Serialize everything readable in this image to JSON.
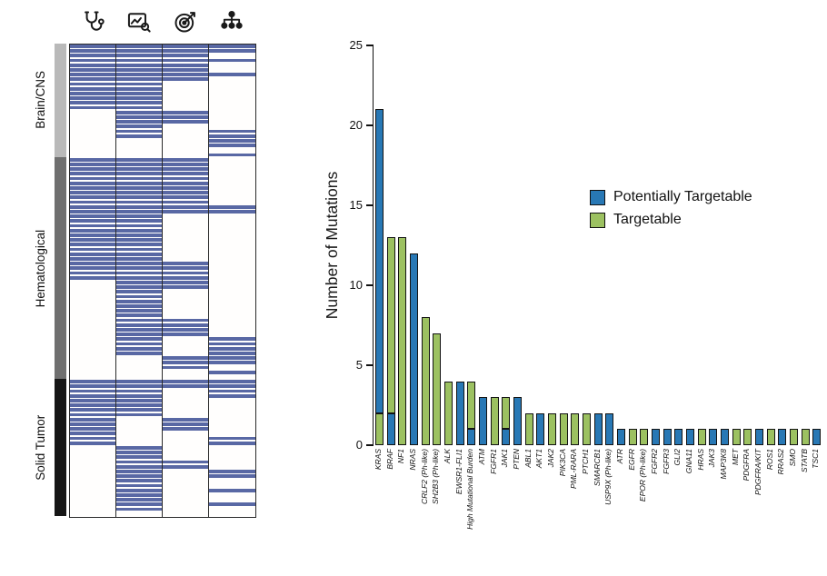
{
  "heatmap": {
    "stripe_color": "#5968a4",
    "columns": [
      {
        "icon": "stethoscope-icon"
      },
      {
        "icon": "imaging-icon"
      },
      {
        "icon": "target-icon"
      },
      {
        "icon": "pedigree-icon"
      }
    ],
    "groups": [
      {
        "label": "Brain/CNS",
        "sidebar_color": "#b9b9b9",
        "rows": [
          "1111",
          "1111",
          "1110",
          "1111",
          "1110",
          "1110",
          "1111",
          "1110",
          "1100",
          "1100",
          "1100",
          "1100",
          "1100",
          "1100",
          "0110",
          "0110",
          "0110",
          "0100",
          "0101",
          "0101",
          "0001",
          "0001",
          "0000",
          "0001"
        ]
      },
      {
        "label": "Hematological",
        "sidebar_color": "#6f6f6f",
        "rows": [
          "1110",
          "1110",
          "1110",
          "1110",
          "1110",
          "1110",
          "1110",
          "1110",
          "1110",
          "1110",
          "1111",
          "1111",
          "1100",
          "1100",
          "1100",
          "1100",
          "1100",
          "1100",
          "1100",
          "1100",
          "1100",
          "1100",
          "1110",
          "1110",
          "1110",
          "1110",
          "0110",
          "0110",
          "0100",
          "0100",
          "0100",
          "0100",
          "0100",
          "0100",
          "0110",
          "0110",
          "0110",
          "0110",
          "0101",
          "0101",
          "0101",
          "0101",
          "0011",
          "0011",
          "0010",
          "0001",
          "0000"
        ]
      },
      {
        "label": "Solid Tumor",
        "sidebar_color": "#161616",
        "rows": [
          "1111",
          "1111",
          "1101",
          "1101",
          "1100",
          "1100",
          "1100",
          "1100",
          "1010",
          "1010",
          "1010",
          "1000",
          "1001",
          "1001",
          "0100",
          "0100",
          "0100",
          "0110",
          "0110",
          "0101",
          "0101",
          "0100",
          "0100",
          "0101",
          "0100",
          "0100",
          "0101",
          "0100",
          "0000"
        ]
      }
    ]
  },
  "chart_data": {
    "type": "bar",
    "stacked": true,
    "title": "",
    "xlabel": "",
    "ylabel": "Number of Mutations",
    "ylim": [
      0,
      25
    ],
    "yticks": [
      0,
      5,
      10,
      15,
      20,
      25
    ],
    "grid": false,
    "legend_position": "middle-right",
    "colors": {
      "blue": "#2878b5",
      "green": "#9cc161"
    },
    "legend": [
      {
        "key": "blue",
        "label": "Potentially Targetable"
      },
      {
        "key": "green",
        "label": "Targetable"
      }
    ],
    "bars": [
      {
        "gene": "KRAS",
        "segments": [
          {
            "key": "green",
            "value": 2
          },
          {
            "key": "blue",
            "value": 19
          }
        ]
      },
      {
        "gene": "BRAF",
        "segments": [
          {
            "key": "blue",
            "value": 2
          },
          {
            "key": "green",
            "value": 11
          }
        ]
      },
      {
        "gene": "NF1",
        "segments": [
          {
            "key": "green",
            "value": 13
          }
        ]
      },
      {
        "gene": "NRAS",
        "segments": [
          {
            "key": "blue",
            "value": 12
          }
        ]
      },
      {
        "gene": "CRLF2 (Ph-like)",
        "segments": [
          {
            "key": "green",
            "value": 8
          }
        ]
      },
      {
        "gene": "SH2B3 (Ph-like)",
        "segments": [
          {
            "key": "green",
            "value": 7
          }
        ]
      },
      {
        "gene": "ALK",
        "segments": [
          {
            "key": "green",
            "value": 4
          }
        ]
      },
      {
        "gene": "EWSR1-FLI1",
        "segments": [
          {
            "key": "blue",
            "value": 4
          }
        ]
      },
      {
        "gene": "High Mutational Burden",
        "segments": [
          {
            "key": "blue",
            "value": 1
          },
          {
            "key": "green",
            "value": 3
          }
        ]
      },
      {
        "gene": "ATM",
        "segments": [
          {
            "key": "blue",
            "value": 3
          }
        ]
      },
      {
        "gene": "FGFR1",
        "segments": [
          {
            "key": "green",
            "value": 3
          }
        ]
      },
      {
        "gene": "JAK1",
        "segments": [
          {
            "key": "blue",
            "value": 1
          },
          {
            "key": "green",
            "value": 2
          }
        ]
      },
      {
        "gene": "PTEN",
        "segments": [
          {
            "key": "blue",
            "value": 3
          }
        ]
      },
      {
        "gene": "ABL1",
        "segments": [
          {
            "key": "green",
            "value": 2
          }
        ]
      },
      {
        "gene": "AKT1",
        "segments": [
          {
            "key": "blue",
            "value": 2
          }
        ]
      },
      {
        "gene": "JAK2",
        "segments": [
          {
            "key": "green",
            "value": 2
          }
        ]
      },
      {
        "gene": "PIK3CA",
        "segments": [
          {
            "key": "green",
            "value": 2
          }
        ]
      },
      {
        "gene": "PML-RARA",
        "segments": [
          {
            "key": "green",
            "value": 2
          }
        ]
      },
      {
        "gene": "PTCH1",
        "segments": [
          {
            "key": "green",
            "value": 2
          }
        ]
      },
      {
        "gene": "SMARCB1",
        "segments": [
          {
            "key": "blue",
            "value": 2
          }
        ]
      },
      {
        "gene": "USP9X (Ph-like)",
        "segments": [
          {
            "key": "blue",
            "value": 2
          }
        ]
      },
      {
        "gene": "ATR",
        "segments": [
          {
            "key": "blue",
            "value": 1
          }
        ]
      },
      {
        "gene": "EGFR",
        "segments": [
          {
            "key": "green",
            "value": 1
          }
        ]
      },
      {
        "gene": "EPOR (Ph-like)",
        "segments": [
          {
            "key": "green",
            "value": 1
          }
        ]
      },
      {
        "gene": "FGFR2",
        "segments": [
          {
            "key": "blue",
            "value": 1
          }
        ]
      },
      {
        "gene": "FGFR3",
        "segments": [
          {
            "key": "blue",
            "value": 1
          }
        ]
      },
      {
        "gene": "GLI2",
        "segments": [
          {
            "key": "blue",
            "value": 1
          }
        ]
      },
      {
        "gene": "GNA11",
        "segments": [
          {
            "key": "blue",
            "value": 1
          }
        ]
      },
      {
        "gene": "HRAS",
        "segments": [
          {
            "key": "green",
            "value": 1
          }
        ]
      },
      {
        "gene": "JAK3",
        "segments": [
          {
            "key": "blue",
            "value": 1
          }
        ]
      },
      {
        "gene": "MAP3K8",
        "segments": [
          {
            "key": "blue",
            "value": 1
          }
        ]
      },
      {
        "gene": "MET",
        "segments": [
          {
            "key": "green",
            "value": 1
          }
        ]
      },
      {
        "gene": "PDGFRA",
        "segments": [
          {
            "key": "green",
            "value": 1
          }
        ]
      },
      {
        "gene": "PDGFRA/KIT",
        "segments": [
          {
            "key": "blue",
            "value": 1
          }
        ]
      },
      {
        "gene": "ROS1",
        "segments": [
          {
            "key": "green",
            "value": 1
          }
        ]
      },
      {
        "gene": "RRAS2",
        "segments": [
          {
            "key": "blue",
            "value": 1
          }
        ]
      },
      {
        "gene": "SMO",
        "segments": [
          {
            "key": "green",
            "value": 1
          }
        ]
      },
      {
        "gene": "STATB",
        "segments": [
          {
            "key": "green",
            "value": 1
          }
        ]
      },
      {
        "gene": "TSC1",
        "segments": [
          {
            "key": "blue",
            "value": 1
          }
        ]
      }
    ]
  }
}
